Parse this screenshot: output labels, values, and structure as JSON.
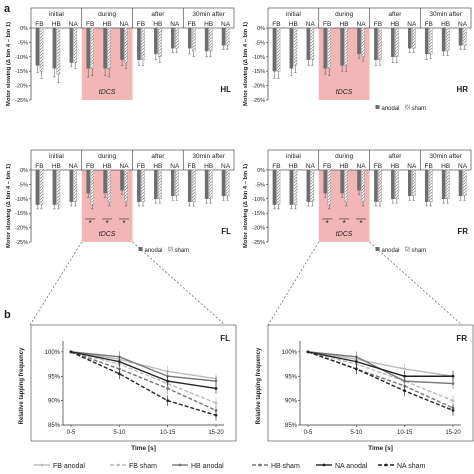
{
  "figure": {
    "label_a": "a",
    "label_b": "b",
    "phases": [
      "initial",
      "during",
      "after",
      "30min after"
    ],
    "conditions": [
      "FB",
      "HB",
      "NA"
    ],
    "tdcs_label": "tDCS",
    "bar_legend": {
      "anodal": "anodal",
      "sham": "sham"
    },
    "star": "*"
  },
  "chart_data": [
    {
      "type": "bar",
      "panel": "HL",
      "title": "HL",
      "ylabel": "Motor slowing (Δ bin 4 – bin 1)",
      "yticks": [
        "0%",
        "-5%",
        "-10%",
        "-15%",
        "-20%",
        "-25%"
      ],
      "ylim": [
        -25,
        0
      ],
      "categories": [
        "initial FB",
        "initial HB",
        "initial NA",
        "during FB",
        "during HB",
        "during NA",
        "after FB",
        "after HB",
        "after NA",
        "30min after FB",
        "30min after HB",
        "30min after NA"
      ],
      "series": [
        {
          "name": "anodal",
          "values": [
            -13,
            -14,
            -12,
            -14,
            -14,
            -11,
            -11,
            -9,
            -7,
            -7,
            -8,
            -6
          ],
          "errors": [
            2.5,
            3,
            1.5,
            3,
            2.5,
            2,
            2,
            2,
            1.5,
            2,
            2,
            1.5
          ]
        },
        {
          "name": "sham",
          "values": [
            -15,
            -16,
            -12,
            -14,
            -14,
            -12,
            -11,
            -10,
            -7,
            -8,
            -8,
            -6
          ],
          "errors": [
            2.5,
            3,
            2,
            2.5,
            3,
            2,
            2,
            2,
            1.5,
            2,
            2,
            1.5
          ]
        }
      ]
    },
    {
      "type": "bar",
      "panel": "HR",
      "title": "HR",
      "ylabel": "Motor slowing (Δ bin 4 – bin 1)",
      "yticks": [
        "0%",
        "-5%",
        "-10%",
        "-15%",
        "-20%",
        "-25%"
      ],
      "ylim": [
        -25,
        0
      ],
      "categories": [
        "initial FB",
        "initial HB",
        "initial NA",
        "during FB",
        "during HB",
        "during NA",
        "after FB",
        "after HB",
        "after NA",
        "30min after FB",
        "30min after HB",
        "30min after NA"
      ],
      "series": [
        {
          "name": "anodal",
          "values": [
            -15,
            -14,
            -11,
            -14,
            -13,
            -9,
            -11,
            -10,
            -7,
            -9,
            -8,
            -6
          ],
          "errors": [
            2.5,
            2.5,
            2,
            2,
            2,
            1.5,
            2,
            2,
            1.5,
            2,
            1.5,
            1.5
          ]
        },
        {
          "name": "sham",
          "values": [
            -15,
            -13,
            -11,
            -14,
            -13,
            -10,
            -11,
            -10,
            -7,
            -9,
            -8,
            -6
          ],
          "errors": [
            2.5,
            2.5,
            2,
            2.5,
            2,
            1.5,
            2,
            2,
            1.5,
            1.5,
            1.5,
            1.5
          ]
        }
      ]
    },
    {
      "type": "bar",
      "panel": "FL",
      "title": "FL",
      "ylabel": "Motor slowing (Δ bin 4 – bin 1)",
      "yticks": [
        "0%",
        "-5%",
        "-10%",
        "-15%",
        "-20%",
        "-25%"
      ],
      "ylim": [
        -25,
        0
      ],
      "significant_groups": [
        "during FB",
        "during HB",
        "during NA"
      ],
      "categories": [
        "initial FB",
        "initial HB",
        "initial NA",
        "during FB",
        "during HB",
        "during NA",
        "after FB",
        "after HB",
        "after NA",
        "30min after FB",
        "30min after HB",
        "30min after NA"
      ],
      "series": [
        {
          "name": "anodal",
          "values": [
            -12,
            -12,
            -11,
            -8,
            -8,
            -7,
            -11,
            -10,
            -9,
            -11,
            -10,
            -9
          ],
          "errors": [
            1.5,
            1.5,
            1.5,
            1.5,
            1.5,
            1.5,
            1.5,
            1.5,
            1.5,
            1.5,
            1.5,
            1.5
          ]
        },
        {
          "name": "sham",
          "values": [
            -12,
            -12,
            -11,
            -12,
            -11,
            -11,
            -11,
            -10,
            -9,
            -11,
            -10,
            -9
          ],
          "errors": [
            1.5,
            1.5,
            1.5,
            1.5,
            1.5,
            1.5,
            1.5,
            1.5,
            1.5,
            1.5,
            1.5,
            1.5
          ]
        }
      ]
    },
    {
      "type": "bar",
      "panel": "FR",
      "title": "FR",
      "ylabel": "Motor slowing (Δ bin 4 – bin 1)",
      "yticks": [
        "0%",
        "-5%",
        "-10%",
        "-15%",
        "-20%",
        "-25%"
      ],
      "ylim": [
        -25,
        0
      ],
      "significant_groups": [
        "during FB",
        "during HB",
        "during NA"
      ],
      "categories": [
        "initial FB",
        "initial HB",
        "initial NA",
        "during FB",
        "during HB",
        "during NA",
        "after FB",
        "after HB",
        "after NA",
        "30min after FB",
        "30min after HB",
        "30min after NA"
      ],
      "series": [
        {
          "name": "anodal",
          "values": [
            -12,
            -12,
            -11,
            -8,
            -8,
            -7,
            -11,
            -10,
            -9,
            -11,
            -10,
            -9
          ],
          "errors": [
            1.5,
            1.5,
            1.5,
            1.5,
            1.5,
            1.5,
            1.5,
            1.5,
            1.5,
            1.5,
            1.5,
            1.5
          ]
        },
        {
          "name": "sham",
          "values": [
            -12,
            -12,
            -11,
            -12,
            -11,
            -11,
            -11,
            -10,
            -9,
            -11,
            -10,
            -9
          ],
          "errors": [
            1.5,
            1.5,
            1.5,
            1.5,
            1.5,
            1.5,
            1.5,
            1.5,
            1.5,
            1.5,
            1.5,
            1.5
          ]
        }
      ]
    },
    {
      "type": "line",
      "panel": "FL",
      "title": "FL",
      "xlabel": "Time [s]",
      "ylabel": "Relative tapping frequency",
      "categories": [
        "0-5",
        "5-10",
        "10-15",
        "15-20"
      ],
      "yticks": [
        "85%",
        "90%",
        "95%",
        "100%"
      ],
      "ylim": [
        85,
        101
      ],
      "series": [
        {
          "name": "FB anodal",
          "values": [
            100,
            98.5,
            96,
            94.5
          ]
        },
        {
          "name": "FB sham",
          "values": [
            100,
            97.5,
            93.5,
            89.5
          ]
        },
        {
          "name": "HB anodal",
          "values": [
            100,
            99,
            95,
            94
          ]
        },
        {
          "name": "HB sham",
          "values": [
            100,
            96.5,
            92.5,
            88
          ]
        },
        {
          "name": "NA anodal",
          "values": [
            100,
            98,
            94,
            92.5
          ]
        },
        {
          "name": "NA sham",
          "values": [
            100,
            95.5,
            90,
            87
          ]
        }
      ]
    },
    {
      "type": "line",
      "panel": "FR",
      "title": "FR",
      "xlabel": "Time [s]",
      "ylabel": "Relative tapping frequency",
      "categories": [
        "0-5",
        "5-10",
        "10-15",
        "15-20"
      ],
      "yticks": [
        "85%",
        "90%",
        "95%",
        "100%"
      ],
      "ylim": [
        85,
        101
      ],
      "series": [
        {
          "name": "FB anodal",
          "values": [
            100,
            98.5,
            96.5,
            95
          ]
        },
        {
          "name": "FB sham",
          "values": [
            100,
            97.5,
            94,
            90
          ]
        },
        {
          "name": "HB anodal",
          "values": [
            100,
            99,
            94,
            93.5
          ]
        },
        {
          "name": "HB sham",
          "values": [
            100,
            96.5,
            93,
            88.5
          ]
        },
        {
          "name": "NA anodal",
          "values": [
            100,
            98,
            95,
            95
          ]
        },
        {
          "name": "NA sham",
          "values": [
            100,
            96.5,
            92,
            88
          ]
        }
      ]
    }
  ],
  "line_legend": [
    "FB anodal",
    "FB sham",
    "HB anodal",
    "HB sham",
    "NA anodal",
    "NA sham"
  ],
  "colors": {
    "shade": "#f2b6b6",
    "anodal": "#6d6d6d",
    "sham": "#cfcfcf",
    "axis": "#333333"
  }
}
